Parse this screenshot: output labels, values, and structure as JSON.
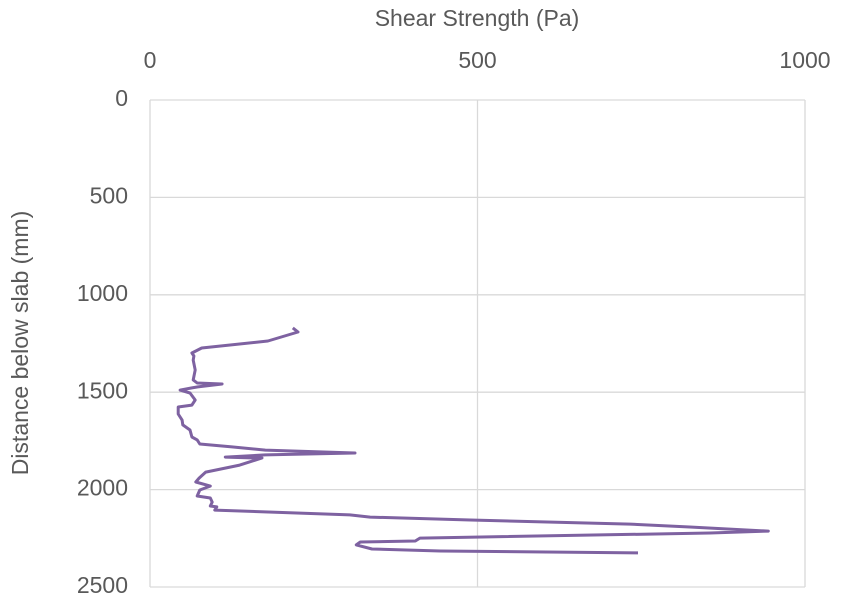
{
  "chart_data": {
    "type": "line",
    "xlabel": "Shear Strength (Pa)",
    "ylabel": "Distance below slab (mm)",
    "x": [
      218,
      226,
      180,
      79,
      64,
      67,
      66,
      69,
      66,
      72,
      110,
      73,
      64,
      46,
      61,
      69,
      64,
      43,
      43,
      49,
      50,
      61,
      64,
      72,
      76,
      125,
      176,
      313,
      176,
      115,
      160,
      171,
      137,
      85,
      75,
      70,
      92,
      76,
      72,
      92,
      95,
      92,
      102,
      99,
      305,
      336,
      489,
      733,
      824,
      944,
      855,
      412,
      405,
      321,
      315,
      339,
      443,
      745
    ],
    "series": [
      {
        "color": "#7e62a1",
        "values": [
          1170,
          1191,
          1237,
          1273,
          1299,
          1314,
          1335,
          1386,
          1437,
          1453,
          1458,
          1473,
          1478,
          1489,
          1504,
          1540,
          1566,
          1576,
          1612,
          1643,
          1668,
          1694,
          1730,
          1745,
          1766,
          1781,
          1797,
          1812,
          1822,
          1833,
          1838,
          1838,
          1874,
          1910,
          1941,
          1961,
          1982,
          2002,
          2033,
          2043,
          2064,
          2084,
          2089,
          2105,
          2130,
          2141,
          2156,
          2177,
          2192,
          2213,
          2223,
          2249,
          2264,
          2269,
          2284,
          2305,
          2315,
          2325
        ]
      }
    ],
    "xlim": [
      0,
      1000
    ],
    "xticks": [
      0,
      500,
      1000
    ],
    "ylim": [
      0,
      2500
    ],
    "yticks": [
      0,
      500,
      1000,
      1500,
      2000,
      2500
    ],
    "y_inverted": true,
    "x_axis_position": "top",
    "grid": true
  }
}
